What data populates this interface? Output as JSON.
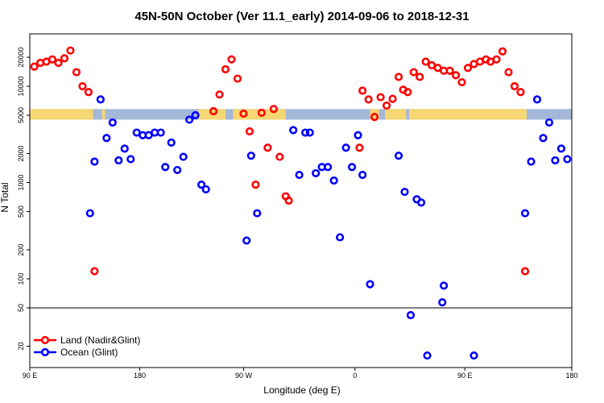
{
  "chart_data": {
    "type": "scatter",
    "title": "45N-50N October (Ver 11.1_early)   2014-09-06 to 2018-12-31",
    "xlabel": "Longitude (deg E)",
    "ylabel": "N Total",
    "y_scale": "log",
    "ylim": [
      12,
      35000
    ],
    "xlim": [
      0,
      360
    ],
    "x_ticks": [
      {
        "value": 0,
        "label": "90 E"
      },
      {
        "value": 73,
        "label": "180"
      },
      {
        "value": 142,
        "label": "90 W"
      },
      {
        "value": 216,
        "label": "0"
      },
      {
        "value": 289,
        "label": "90 E"
      },
      {
        "value": 360,
        "label": "180"
      }
    ],
    "y_ticks": [
      {
        "value": 20,
        "label": "20"
      },
      {
        "value": 50,
        "label": "50"
      },
      {
        "value": 100,
        "label": "100"
      },
      {
        "value": 200,
        "label": "200"
      },
      {
        "value": 500,
        "label": "500"
      },
      {
        "value": 1000,
        "label": "1000"
      },
      {
        "value": 2000,
        "label": "2000"
      },
      {
        "value": 5000,
        "label": "5000"
      },
      {
        "value": 10000,
        "label": "10000"
      },
      {
        "value": 20000,
        "label": "20000"
      }
    ],
    "reference_line": {
      "y": 50,
      "color": "#000000"
    },
    "land_ocean_strip": {
      "y_range": [
        4500,
        5800
      ],
      "land_color": "#f7d774",
      "ocean_color": "#a3b8d8"
    },
    "legend": {
      "position": "bottom-left"
    },
    "series": [
      {
        "name": "Land (Nadir&Glint)",
        "color": "#ff0000",
        "points": [
          [
            3,
            16000
          ],
          [
            7,
            17500
          ],
          [
            11,
            18000
          ],
          [
            15,
            19000
          ],
          [
            19,
            17500
          ],
          [
            23,
            19500
          ],
          [
            27,
            23500
          ],
          [
            31,
            14000
          ],
          [
            35,
            10000
          ],
          [
            39,
            8700
          ],
          [
            43,
            120
          ],
          [
            122,
            5500
          ],
          [
            126,
            8200
          ],
          [
            130,
            15000
          ],
          [
            134,
            19000
          ],
          [
            138,
            12000
          ],
          [
            142,
            5200
          ],
          [
            146,
            3400
          ],
          [
            150,
            950
          ],
          [
            154,
            5300
          ],
          [
            158,
            2300
          ],
          [
            162,
            5800
          ],
          [
            166,
            1850
          ],
          [
            170,
            720
          ],
          [
            172,
            650
          ],
          [
            219,
            2300
          ],
          [
            221,
            9000
          ],
          [
            225,
            7300
          ],
          [
            229,
            4800
          ],
          [
            233,
            7700
          ],
          [
            237,
            6300
          ],
          [
            241,
            7400
          ],
          [
            245,
            12500
          ],
          [
            248,
            9200
          ],
          [
            251,
            8700
          ],
          [
            255,
            14000
          ],
          [
            259,
            12500
          ],
          [
            263,
            18000
          ],
          [
            267,
            16500
          ],
          [
            271,
            15500
          ],
          [
            275,
            14500
          ],
          [
            279,
            14500
          ],
          [
            283,
            13000
          ],
          [
            287,
            11000
          ],
          [
            291,
            15500
          ],
          [
            295,
            17000
          ],
          [
            299,
            18000
          ],
          [
            303,
            19000
          ],
          [
            306,
            18000
          ],
          [
            310,
            19000
          ],
          [
            314,
            23000
          ],
          [
            318,
            14000
          ],
          [
            322,
            10000
          ],
          [
            326,
            8700
          ],
          [
            329,
            120
          ]
        ]
      },
      {
        "name": "Ocean (Glint)",
        "color": "#0000ff",
        "points": [
          [
            40,
            480
          ],
          [
            43,
            1650
          ],
          [
            47,
            7300
          ],
          [
            51,
            2900
          ],
          [
            55,
            4200
          ],
          [
            59,
            1700
          ],
          [
            63,
            2250
          ],
          [
            67,
            1750
          ],
          [
            71,
            3300
          ],
          [
            75,
            3100
          ],
          [
            79,
            3100
          ],
          [
            83,
            3300
          ],
          [
            87,
            3300
          ],
          [
            90,
            1450
          ],
          [
            94,
            2600
          ],
          [
            98,
            1350
          ],
          [
            102,
            1850
          ],
          [
            106,
            4500
          ],
          [
            110,
            5000
          ],
          [
            114,
            950
          ],
          [
            117,
            850
          ],
          [
            144,
            250
          ],
          [
            147,
            1900
          ],
          [
            151,
            480
          ],
          [
            175,
            3500
          ],
          [
            179,
            1200
          ],
          [
            183,
            3300
          ],
          [
            186,
            3300
          ],
          [
            190,
            1250
          ],
          [
            194,
            1450
          ],
          [
            198,
            1450
          ],
          [
            202,
            1050
          ],
          [
            206,
            270
          ],
          [
            210,
            2300
          ],
          [
            214,
            1450
          ],
          [
            218,
            3100
          ],
          [
            221,
            1200
          ],
          [
            226,
            88
          ],
          [
            245,
            1900
          ],
          [
            249,
            800
          ],
          [
            253,
            42
          ],
          [
            257,
            670
          ],
          [
            260,
            620
          ],
          [
            264,
            16
          ],
          [
            274,
            57
          ],
          [
            275,
            85
          ],
          [
            295,
            16
          ],
          [
            329,
            480
          ],
          [
            333,
            1650
          ],
          [
            337,
            7300
          ],
          [
            341,
            2900
          ],
          [
            345,
            4200
          ],
          [
            349,
            1700
          ],
          [
            353,
            2250
          ],
          [
            357,
            1750
          ],
          [
            361,
            3300
          ]
        ]
      }
    ]
  }
}
